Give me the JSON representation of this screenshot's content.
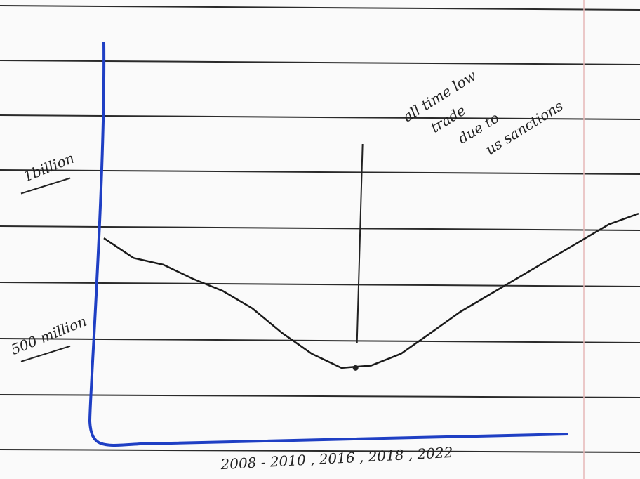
{
  "chart_data": {
    "type": "line",
    "yticks": [
      {
        "value": 1000,
        "label": "1billion"
      },
      {
        "value": 500,
        "label": "500 million"
      }
    ],
    "ylim": [
      180,
      1375
    ],
    "xlabel": "2008 - 2010 , 2016 , 2018 , 2022",
    "annotation": [
      "all time low",
      "trade",
      "due to",
      "us sanctions"
    ],
    "categories": [
      null,
      null,
      null,
      null,
      null,
      null,
      null,
      null,
      null,
      null,
      null,
      null,
      null,
      null,
      null,
      null,
      null,
      null,
      null
    ],
    "series": [
      {
        "color": "#1a1a1a",
        "values": [
          792,
          733,
          713,
          671,
          635,
          583,
          510,
          448,
          406,
          413,
          448,
          510,
          573,
          625,
          677,
          729,
          781,
          833,
          865
        ]
      }
    ]
  }
}
